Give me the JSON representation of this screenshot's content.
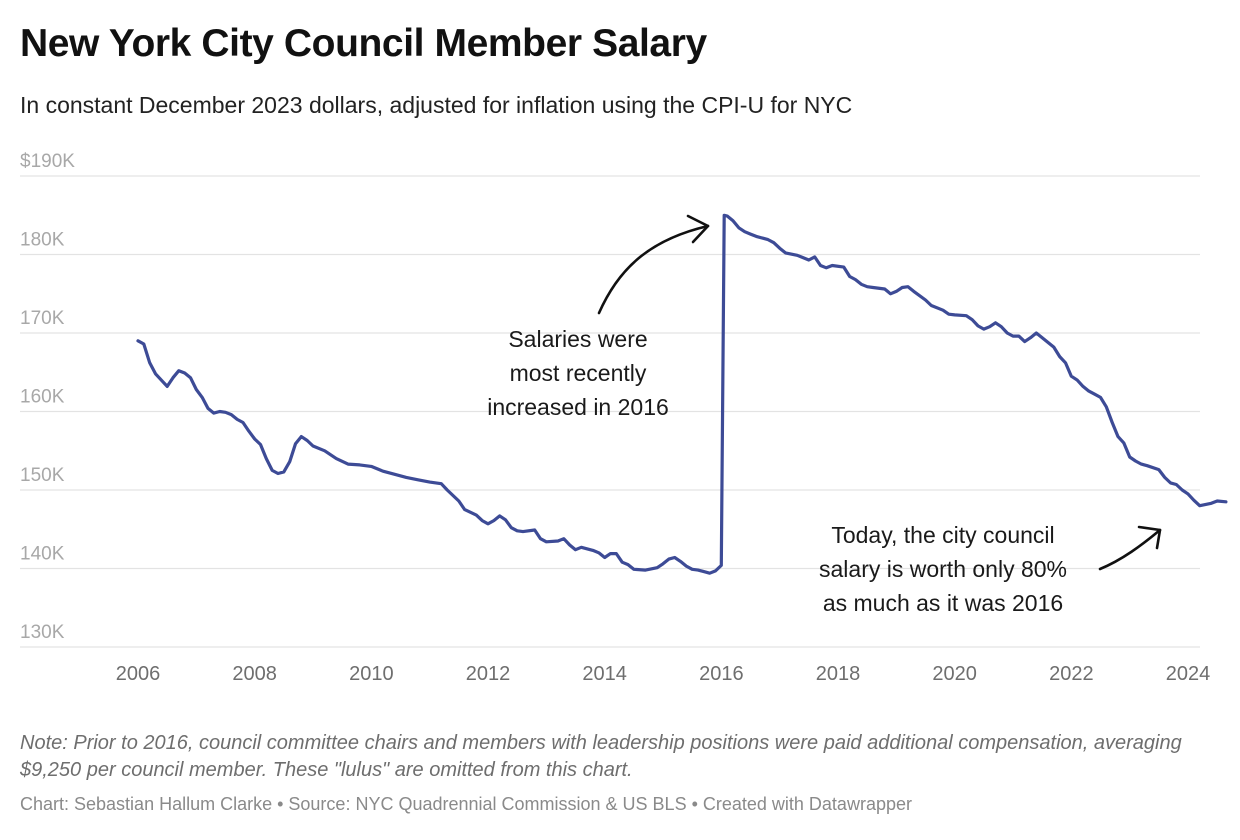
{
  "header": {
    "title": "New York City Council Member Salary",
    "subtitle": "In constant December 2023 dollars, adjusted for inflation using the CPI-U for NYC"
  },
  "chart_data": {
    "type": "line",
    "title": "New York City Council Member Salary",
    "subtitle": "In constant December 2023 dollars, adjusted for inflation using the CPI-U for NYC",
    "xlabel": "",
    "ylabel": "",
    "xlim": [
      2006,
      2024
    ],
    "ylim": [
      130000,
      190000
    ],
    "grid": true,
    "y_ticks": [
      {
        "value": 190000,
        "label": "$190K"
      },
      {
        "value": 180000,
        "label": "180K"
      },
      {
        "value": 170000,
        "label": "170K"
      },
      {
        "value": 160000,
        "label": "160K"
      },
      {
        "value": 150000,
        "label": "150K"
      },
      {
        "value": 140000,
        "label": "140K"
      },
      {
        "value": 130000,
        "label": "130K"
      }
    ],
    "x_ticks": [
      {
        "value": 2006,
        "label": "2006"
      },
      {
        "value": 2008,
        "label": "2008"
      },
      {
        "value": 2010,
        "label": "2010"
      },
      {
        "value": 2012,
        "label": "2012"
      },
      {
        "value": 2014,
        "label": "2014"
      },
      {
        "value": 2016,
        "label": "2016"
      },
      {
        "value": 2018,
        "label": "2018"
      },
      {
        "value": 2020,
        "label": "2020"
      },
      {
        "value": 2022,
        "label": "2022"
      },
      {
        "value": 2024,
        "label": "2024"
      }
    ],
    "series": [
      {
        "color": "#3d4b96",
        "points": [
          [
            2006.0,
            169000
          ],
          [
            2006.1,
            168600
          ],
          [
            2006.2,
            166200
          ],
          [
            2006.3,
            164800
          ],
          [
            2006.4,
            164000
          ],
          [
            2006.5,
            163200
          ],
          [
            2006.6,
            164300
          ],
          [
            2006.7,
            165200
          ],
          [
            2006.8,
            164900
          ],
          [
            2006.9,
            164300
          ],
          [
            2007.0,
            162800
          ],
          [
            2007.1,
            161800
          ],
          [
            2007.2,
            160400
          ],
          [
            2007.3,
            159800
          ],
          [
            2007.4,
            160000
          ],
          [
            2007.5,
            159900
          ],
          [
            2007.6,
            159600
          ],
          [
            2007.7,
            159000
          ],
          [
            2007.8,
            158600
          ],
          [
            2007.9,
            157500
          ],
          [
            2008.0,
            156500
          ],
          [
            2008.1,
            155800
          ],
          [
            2008.2,
            154000
          ],
          [
            2008.3,
            152500
          ],
          [
            2008.4,
            152100
          ],
          [
            2008.5,
            152300
          ],
          [
            2008.6,
            153600
          ],
          [
            2008.7,
            155900
          ],
          [
            2008.8,
            156800
          ],
          [
            2008.9,
            156300
          ],
          [
            2009.0,
            155600
          ],
          [
            2009.2,
            155000
          ],
          [
            2009.4,
            154000
          ],
          [
            2009.6,
            153300
          ],
          [
            2009.8,
            153200
          ],
          [
            2010.0,
            153000
          ],
          [
            2010.2,
            152400
          ],
          [
            2010.4,
            152000
          ],
          [
            2010.6,
            151600
          ],
          [
            2010.8,
            151300
          ],
          [
            2011.0,
            151000
          ],
          [
            2011.2,
            150800
          ],
          [
            2011.3,
            150000
          ],
          [
            2011.5,
            148600
          ],
          [
            2011.6,
            147500
          ],
          [
            2011.8,
            146800
          ],
          [
            2011.9,
            146100
          ],
          [
            2012.0,
            145700
          ],
          [
            2012.1,
            146100
          ],
          [
            2012.2,
            146700
          ],
          [
            2012.3,
            146200
          ],
          [
            2012.4,
            145200
          ],
          [
            2012.5,
            144800
          ],
          [
            2012.6,
            144700
          ],
          [
            2012.8,
            144900
          ],
          [
            2012.9,
            143800
          ],
          [
            2013.0,
            143400
          ],
          [
            2013.2,
            143500
          ],
          [
            2013.3,
            143800
          ],
          [
            2013.4,
            143000
          ],
          [
            2013.5,
            142400
          ],
          [
            2013.6,
            142700
          ],
          [
            2013.8,
            142300
          ],
          [
            2013.9,
            142000
          ],
          [
            2014.0,
            141400
          ],
          [
            2014.1,
            141900
          ],
          [
            2014.2,
            141900
          ],
          [
            2014.3,
            140800
          ],
          [
            2014.4,
            140500
          ],
          [
            2014.5,
            139900
          ],
          [
            2014.7,
            139800
          ],
          [
            2014.9,
            140100
          ],
          [
            2015.0,
            140600
          ],
          [
            2015.1,
            141200
          ],
          [
            2015.2,
            141400
          ],
          [
            2015.3,
            140900
          ],
          [
            2015.4,
            140300
          ],
          [
            2015.5,
            139900
          ],
          [
            2015.6,
            139800
          ],
          [
            2015.7,
            139600
          ],
          [
            2015.8,
            139400
          ],
          [
            2015.9,
            139700
          ],
          [
            2016.0,
            140400
          ],
          [
            2016.05,
            185000
          ],
          [
            2016.1,
            184900
          ],
          [
            2016.2,
            184300
          ],
          [
            2016.3,
            183400
          ],
          [
            2016.4,
            182900
          ],
          [
            2016.5,
            182600
          ],
          [
            2016.6,
            182300
          ],
          [
            2016.8,
            181900
          ],
          [
            2016.9,
            181500
          ],
          [
            2017.0,
            180800
          ],
          [
            2017.1,
            180200
          ],
          [
            2017.3,
            179900
          ],
          [
            2017.4,
            179600
          ],
          [
            2017.5,
            179300
          ],
          [
            2017.6,
            179700
          ],
          [
            2017.7,
            178600
          ],
          [
            2017.8,
            178300
          ],
          [
            2017.9,
            178600
          ],
          [
            2018.1,
            178400
          ],
          [
            2018.2,
            177200
          ],
          [
            2018.3,
            176800
          ],
          [
            2018.4,
            176200
          ],
          [
            2018.5,
            175900
          ],
          [
            2018.6,
            175800
          ],
          [
            2018.8,
            175600
          ],
          [
            2018.9,
            175000
          ],
          [
            2019.0,
            175300
          ],
          [
            2019.1,
            175800
          ],
          [
            2019.2,
            175900
          ],
          [
            2019.3,
            175300
          ],
          [
            2019.5,
            174200
          ],
          [
            2019.6,
            173500
          ],
          [
            2019.8,
            172900
          ],
          [
            2019.9,
            172400
          ],
          [
            2020.0,
            172300
          ],
          [
            2020.2,
            172200
          ],
          [
            2020.3,
            171700
          ],
          [
            2020.4,
            170900
          ],
          [
            2020.5,
            170500
          ],
          [
            2020.6,
            170800
          ],
          [
            2020.7,
            171300
          ],
          [
            2020.8,
            170800
          ],
          [
            2020.9,
            170000
          ],
          [
            2021.0,
            169600
          ],
          [
            2021.1,
            169600
          ],
          [
            2021.2,
            168900
          ],
          [
            2021.3,
            169400
          ],
          [
            2021.4,
            170000
          ],
          [
            2021.5,
            169400
          ],
          [
            2021.7,
            168200
          ],
          [
            2021.8,
            167000
          ],
          [
            2021.9,
            166200
          ],
          [
            2022.0,
            164500
          ],
          [
            2022.1,
            164000
          ],
          [
            2022.2,
            163200
          ],
          [
            2022.3,
            162600
          ],
          [
            2022.4,
            162200
          ],
          [
            2022.5,
            161800
          ],
          [
            2022.6,
            160600
          ],
          [
            2022.7,
            158600
          ],
          [
            2022.8,
            156800
          ],
          [
            2022.9,
            156000
          ],
          [
            2023.0,
            154200
          ],
          [
            2023.1,
            153700
          ],
          [
            2023.2,
            153300
          ],
          [
            2023.3,
            153100
          ],
          [
            2023.5,
            152600
          ],
          [
            2023.6,
            151600
          ],
          [
            2023.7,
            150900
          ],
          [
            2023.8,
            150700
          ],
          [
            2023.9,
            150000
          ],
          [
            2024.0,
            149500
          ],
          [
            2024.1,
            148700
          ],
          [
            2024.2,
            148000
          ],
          [
            2024.4,
            148300
          ],
          [
            2024.5,
            148600
          ],
          [
            2024.65,
            148500
          ]
        ]
      }
    ],
    "annotations": [
      {
        "lines": [
          "Salaries were",
          "most recently",
          "increased in 2016"
        ]
      },
      {
        "lines": [
          "Today, the city council",
          "salary is worth only 80%",
          "as much as it was 2016"
        ]
      }
    ]
  },
  "footer": {
    "note": "Note: Prior to 2016, council committee chairs and members with leadership positions were paid additional compensation, averaging $9,250 per council member. These \"lulus\" are omitted from this chart.",
    "credit": "Chart: Sebastian Hallum Clarke • Source: NYC Quadrennial Commission & US BLS • Created with Datawrapper"
  }
}
